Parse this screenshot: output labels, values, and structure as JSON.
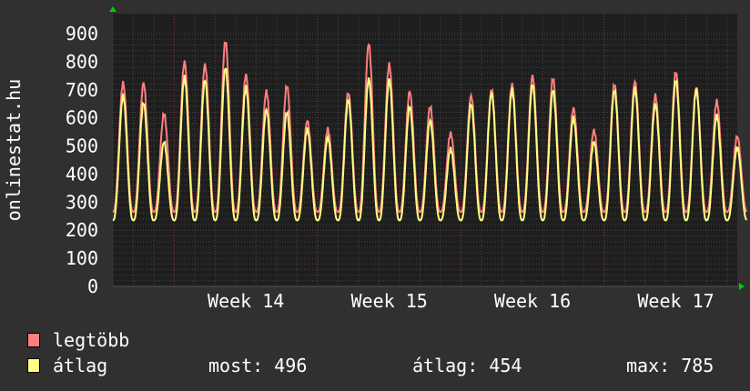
{
  "chart_data": {
    "type": "line",
    "ylabel": "onlinestat.hu",
    "ylim": [
      0,
      900
    ],
    "yticks": [
      "0",
      "100",
      "200",
      "300",
      "400",
      "500",
      "600",
      "700",
      "800",
      "900"
    ],
    "x_unit": "days",
    "xlim": [
      0,
      30.5
    ],
    "week_labels": [
      {
        "label": "Week 14",
        "day": 6.5
      },
      {
        "label": "Week 15",
        "day": 13.5
      },
      {
        "label": "Week 16",
        "day": 20.5
      },
      {
        "label": "Week 17",
        "day": 27.5
      }
    ],
    "week_starts": [
      3,
      10,
      17,
      24
    ],
    "series": [
      {
        "name": "legtöbb",
        "color": "#ff7f7f",
        "daily_peaks": [
          725,
          725,
          615,
          800,
          790,
          875,
          755,
          695,
          715,
          590,
          560,
          690,
          865,
          790,
          695,
          640,
          545,
          680,
          700,
          720,
          750,
          740,
          635,
          555,
          720,
          730,
          680,
          765,
          710,
          660,
          535
        ],
        "trough": 265
      },
      {
        "name": "átlag",
        "color": "#ffff80",
        "daily_peaks": [
          680,
          655,
          515,
          745,
          735,
          780,
          710,
          630,
          620,
          560,
          530,
          665,
          740,
          735,
          640,
          590,
          490,
          650,
          690,
          700,
          720,
          700,
          600,
          515,
          700,
          705,
          650,
          735,
          700,
          610,
          496
        ],
        "trough": 235
      }
    ]
  },
  "legend": {
    "max_label": "legtöbb",
    "avg_label": "átlag",
    "most": "most: 496",
    "atlag": "átlag: 454",
    "max": "max: 785"
  },
  "colors": {
    "background": "#303030",
    "plot": "#1e1e1e",
    "arrow": "#00cc00"
  }
}
